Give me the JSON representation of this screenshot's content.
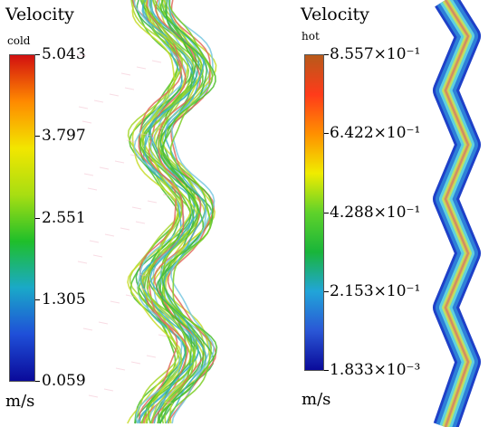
{
  "cold_panel": {
    "title": "Velocity",
    "subtitle": "cold",
    "unit": "m/s",
    "ticks": [
      "5.043",
      "3.797",
      "2.551",
      "1.305",
      "0.059"
    ],
    "colormap": [
      "#d21010",
      "#ff8a00",
      "#f2e600",
      "#a8de12",
      "#1fbf2a",
      "#1aa9c8",
      "#1f4fd8",
      "#0a0a9a"
    ],
    "streamline_colors": [
      "#4cc02a",
      "#7ccf25",
      "#a6d62a",
      "#c8dc2a",
      "#39b44a",
      "#3fb2c7",
      "#e26a5c",
      "#78c8e0"
    ]
  },
  "hot_panel": {
    "title": "Velocity",
    "subtitle": "hot",
    "unit": "m/s",
    "ticks": [
      "8.557×10⁻¹",
      "6.422×10⁻¹",
      "4.288×10⁻¹",
      "2.153×10⁻¹",
      "1.833×10⁻³"
    ],
    "colormap": [
      "#b85a1a",
      "#ff3b1a",
      "#ff9000",
      "#f0ec00",
      "#5fd22a",
      "#19b53a",
      "#21a5d8",
      "#2a57d6",
      "#0a0a9a"
    ],
    "channel_colors": [
      "#1e40c8",
      "#2e7fd8",
      "#5fd0e0",
      "#b6e36a",
      "#e8b34a",
      "#c98e6a"
    ]
  }
}
